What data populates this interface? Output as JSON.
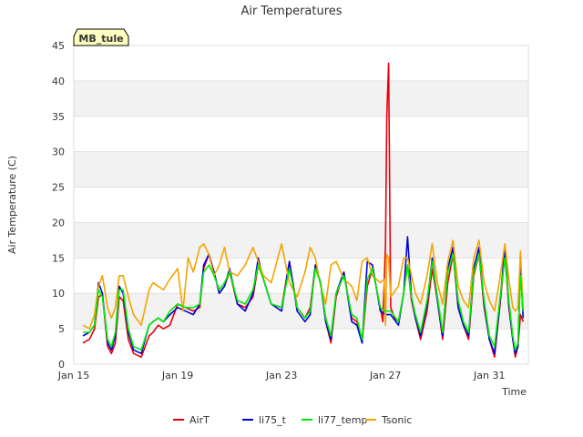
{
  "chart_data": {
    "type": "line",
    "title": "Air Temperatures",
    "xlabel": "Time",
    "ylabel": "Air Temperature (C)",
    "site_badge": "MB_tule",
    "ylim": [
      0,
      45
    ],
    "yticks": [
      0,
      5,
      10,
      15,
      20,
      25,
      30,
      35,
      40,
      45
    ],
    "xlim": [
      15.0,
      32.5
    ],
    "xticks": [
      {
        "value": 15,
        "label": "Jan 15"
      },
      {
        "value": 19,
        "label": "Jan 19"
      },
      {
        "value": 23,
        "label": "Jan 23"
      },
      {
        "value": 27,
        "label": "Jan 27"
      },
      {
        "value": 31,
        "label": "Jan 31"
      }
    ],
    "grid": "horizontal bands",
    "legend_position": "bottom",
    "x_units": "day of January",
    "series": [
      {
        "name": "AirT",
        "color": "#e8000b",
        "x": [
          15.35,
          15.6,
          15.8,
          15.95,
          16.1,
          16.3,
          16.45,
          16.6,
          16.75,
          16.9,
          17.1,
          17.3,
          17.6,
          17.9,
          18.05,
          18.25,
          18.45,
          18.7,
          19.0,
          19.3,
          19.6,
          19.85,
          20.0,
          20.2,
          20.4,
          20.6,
          20.8,
          21.0,
          21.3,
          21.6,
          21.9,
          22.1,
          22.3,
          22.6,
          23.0,
          23.3,
          23.6,
          23.9,
          24.1,
          24.3,
          24.5,
          24.7,
          24.9,
          25.1,
          25.4,
          25.7,
          25.9,
          26.1,
          26.3,
          26.5,
          26.8,
          26.9,
          27.0,
          27.05,
          27.12,
          27.2,
          27.35,
          27.5,
          27.7,
          27.85,
          28.0,
          28.15,
          28.35,
          28.6,
          28.8,
          29.0,
          29.2,
          29.4,
          29.6,
          29.8,
          30.0,
          30.2,
          30.4,
          30.6,
          30.8,
          31.0,
          31.2,
          31.4,
          31.6,
          31.75,
          31.9,
          32.0,
          32.1,
          32.2,
          32.3
        ],
        "values": [
          3.0,
          3.5,
          5.0,
          9.5,
          9.8,
          2.5,
          1.5,
          3.0,
          9.5,
          9.0,
          3.5,
          1.5,
          1.0,
          4.0,
          4.5,
          5.5,
          5.0,
          5.5,
          8.5,
          8.0,
          7.5,
          8.0,
          13.5,
          15.5,
          13.0,
          10.0,
          11.0,
          13.0,
          8.5,
          8.0,
          9.5,
          14.0,
          12.0,
          8.5,
          8.0,
          14.5,
          8.0,
          6.5,
          8.0,
          14.0,
          11.5,
          6.0,
          3.0,
          9.5,
          13.0,
          6.5,
          6.0,
          3.0,
          11.0,
          13.5,
          8.0,
          6.0,
          17.0,
          35.0,
          42.5,
          8.0,
          6.5,
          6.0,
          10.0,
          14.0,
          9.0,
          6.5,
          3.5,
          7.5,
          13.5,
          9.0,
          3.5,
          11.5,
          15.5,
          8.0,
          5.5,
          3.5,
          12.5,
          15.5,
          8.0,
          3.5,
          1.0,
          8.0,
          15.5,
          8.0,
          3.5,
          1.0,
          2.5,
          7.0,
          6.0
        ]
      },
      {
        "name": "li75_t",
        "color": "#0000dd",
        "x": [
          15.35,
          15.6,
          15.8,
          15.95,
          16.1,
          16.3,
          16.45,
          16.6,
          16.75,
          16.9,
          17.1,
          17.3,
          17.6,
          17.9,
          18.05,
          18.25,
          18.45,
          18.7,
          19.0,
          19.3,
          19.6,
          19.85,
          20.0,
          20.2,
          20.4,
          20.6,
          20.8,
          21.0,
          21.3,
          21.6,
          21.9,
          22.1,
          22.3,
          22.6,
          23.0,
          23.3,
          23.6,
          23.9,
          24.1,
          24.3,
          24.5,
          24.7,
          24.9,
          25.1,
          25.4,
          25.7,
          25.9,
          26.1,
          26.3,
          26.5,
          26.8,
          27.0,
          27.2,
          27.5,
          27.7,
          27.85,
          28.0,
          28.15,
          28.35,
          28.6,
          28.8,
          29.0,
          29.2,
          29.4,
          29.6,
          29.8,
          30.0,
          30.2,
          30.4,
          30.6,
          30.8,
          31.0,
          31.2,
          31.4,
          31.6,
          31.75,
          31.9,
          32.0,
          32.1,
          32.2,
          32.3
        ],
        "values": [
          4.0,
          4.5,
          5.5,
          11.5,
          10.0,
          3.0,
          2.0,
          4.0,
          11.0,
          10.0,
          4.5,
          2.0,
          1.5,
          5.5,
          6.0,
          6.5,
          6.0,
          7.0,
          8.0,
          7.5,
          7.0,
          8.5,
          14.0,
          15.5,
          13.0,
          10.0,
          11.0,
          13.5,
          8.5,
          7.5,
          10.0,
          15.0,
          12.0,
          8.5,
          7.5,
          14.5,
          7.5,
          6.0,
          7.0,
          14.0,
          11.5,
          6.0,
          3.5,
          10.0,
          13.0,
          6.0,
          5.5,
          3.0,
          14.5,
          14.0,
          7.5,
          7.0,
          7.0,
          5.5,
          10.0,
          18.0,
          9.5,
          6.5,
          4.0,
          8.5,
          15.0,
          9.0,
          4.0,
          13.5,
          16.5,
          8.0,
          5.5,
          4.0,
          13.5,
          16.5,
          8.5,
          3.5,
          1.5,
          8.5,
          16.5,
          8.5,
          3.5,
          1.5,
          2.5,
          14.0,
          6.5
        ]
      },
      {
        "name": "li77_temp",
        "color": "#00ee00",
        "x": [
          15.35,
          15.6,
          15.8,
          15.95,
          16.1,
          16.3,
          16.45,
          16.6,
          16.75,
          16.9,
          17.1,
          17.3,
          17.6,
          17.9,
          18.05,
          18.25,
          18.45,
          18.7,
          19.0,
          19.3,
          19.6,
          19.85,
          20.0,
          20.2,
          20.4,
          20.6,
          20.8,
          21.0,
          21.3,
          21.6,
          21.9,
          22.1,
          22.3,
          22.6,
          23.0,
          23.3,
          23.6,
          23.9,
          24.1,
          24.3,
          24.5,
          24.7,
          24.9,
          25.1,
          25.4,
          25.7,
          25.9,
          26.1,
          26.3,
          26.5,
          26.8,
          27.0,
          27.2,
          27.5,
          27.7,
          27.85,
          28.0,
          28.15,
          28.35,
          28.6,
          28.8,
          29.0,
          29.2,
          29.4,
          29.6,
          29.8,
          30.0,
          30.2,
          30.4,
          30.6,
          30.8,
          31.0,
          31.2,
          31.4,
          31.6,
          31.75,
          31.9,
          32.0,
          32.1,
          32.2,
          32.3
        ],
        "values": [
          4.5,
          4.5,
          5.5,
          10.5,
          9.5,
          3.5,
          2.5,
          4.5,
          10.5,
          10.5,
          5.0,
          2.5,
          2.0,
          5.5,
          6.0,
          6.5,
          6.0,
          7.5,
          8.5,
          8.0,
          8.0,
          8.5,
          13.0,
          14.0,
          12.5,
          10.5,
          11.5,
          13.0,
          9.0,
          8.5,
          10.5,
          14.0,
          12.0,
          8.5,
          8.0,
          13.5,
          8.0,
          6.5,
          7.5,
          13.5,
          11.5,
          6.5,
          4.0,
          10.0,
          12.5,
          7.0,
          6.5,
          3.5,
          12.0,
          13.5,
          8.0,
          7.5,
          7.5,
          6.0,
          10.0,
          14.0,
          9.5,
          7.0,
          4.5,
          9.0,
          14.5,
          9.5,
          4.5,
          13.0,
          15.5,
          9.0,
          6.0,
          4.5,
          13.0,
          15.5,
          9.0,
          4.0,
          2.5,
          9.0,
          15.0,
          9.0,
          4.0,
          2.0,
          3.0,
          12.5,
          7.5
        ]
      },
      {
        "name": "Tsonic",
        "color": "#f4a300",
        "x": [
          15.35,
          15.6,
          15.8,
          15.95,
          16.1,
          16.3,
          16.45,
          16.6,
          16.75,
          16.9,
          17.1,
          17.3,
          17.6,
          17.9,
          18.05,
          18.25,
          18.45,
          18.7,
          19.0,
          19.2,
          19.4,
          19.6,
          19.85,
          20.0,
          20.2,
          20.4,
          20.6,
          20.8,
          21.0,
          21.3,
          21.6,
          21.9,
          22.1,
          22.3,
          22.6,
          23.0,
          23.3,
          23.6,
          23.9,
          24.1,
          24.3,
          24.5,
          24.7,
          24.9,
          25.1,
          25.4,
          25.7,
          25.9,
          26.1,
          26.3,
          26.5,
          26.8,
          26.95,
          27.0,
          27.05,
          27.12,
          27.2,
          27.5,
          27.7,
          27.85,
          28.0,
          28.15,
          28.35,
          28.6,
          28.8,
          29.0,
          29.2,
          29.4,
          29.6,
          29.8,
          30.0,
          30.2,
          30.4,
          30.6,
          30.8,
          31.0,
          31.2,
          31.4,
          31.6,
          31.75,
          31.9,
          32.0,
          32.1,
          32.2,
          32.3
        ],
        "values": [
          5.5,
          5.0,
          7.0,
          11.0,
          12.5,
          8.0,
          6.5,
          8.0,
          12.5,
          12.5,
          9.5,
          7.0,
          5.5,
          10.5,
          11.5,
          11.0,
          10.5,
          12.0,
          13.5,
          7.5,
          15.0,
          13.0,
          16.5,
          17.0,
          15.5,
          12.5,
          14.0,
          16.5,
          13.0,
          12.5,
          14.0,
          16.5,
          14.5,
          12.5,
          11.5,
          17.0,
          11.5,
          9.5,
          13.0,
          16.5,
          15.0,
          11.0,
          8.5,
          14.0,
          14.5,
          12.0,
          11.0,
          9.0,
          14.5,
          15.0,
          12.5,
          11.5,
          12.0,
          5.5,
          15.5,
          15.0,
          9.5,
          11.0,
          15.0,
          15.0,
          12.5,
          10.0,
          8.5,
          12.5,
          17.0,
          11.5,
          8.5,
          14.5,
          17.5,
          11.0,
          9.0,
          8.0,
          15.0,
          17.5,
          11.5,
          9.0,
          7.5,
          12.0,
          17.0,
          12.0,
          8.0,
          7.5,
          8.0,
          16.0,
          7.5
        ]
      }
    ]
  }
}
